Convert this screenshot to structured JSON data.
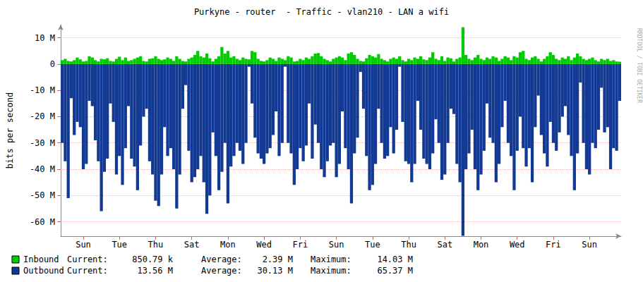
{
  "chart_data": {
    "type": "bar",
    "title": "Purkyne - router  - Traffic - vlan210 - LAN a wifi",
    "y_label": "bits per second",
    "credit": "RRDTOOL / TOBI OETIKER",
    "categories": [
      null,
      null,
      null,
      null,
      null,
      null,
      null,
      "Sun",
      null,
      null,
      null,
      null,
      null,
      null,
      null,
      null,
      null,
      null,
      null,
      "Tue",
      null,
      null,
      null,
      null,
      null,
      null,
      null,
      null,
      null,
      null,
      null,
      "Thu",
      null,
      null,
      null,
      null,
      null,
      null,
      null,
      null,
      null,
      null,
      null,
      "Sat",
      null,
      null,
      null,
      null,
      null,
      null,
      null,
      null,
      null,
      null,
      null,
      "Mon",
      null,
      null,
      null,
      null,
      null,
      null,
      null,
      null,
      null,
      null,
      null,
      "Wed",
      null,
      null,
      null,
      null,
      null,
      null,
      null,
      null,
      null,
      null,
      null,
      "Fri",
      null,
      null,
      null,
      null,
      null,
      null,
      null,
      null,
      null,
      null,
      null,
      "Sun",
      null,
      null,
      null,
      null,
      null,
      null,
      null,
      null,
      null,
      null,
      null,
      "Tue",
      null,
      null,
      null,
      null,
      null,
      null,
      null,
      null,
      null,
      null,
      null,
      "Thu",
      null,
      null,
      null,
      null,
      null,
      null,
      null,
      null,
      null,
      null,
      null,
      "Sat",
      null,
      null,
      null,
      null,
      null,
      null,
      null,
      null,
      null,
      null,
      null,
      "Mon",
      null,
      null,
      null,
      null,
      null,
      null,
      null,
      null,
      null,
      null,
      null,
      "Wed",
      null,
      null,
      null,
      null,
      null,
      null,
      null,
      null,
      null,
      null,
      null,
      "Fri",
      null,
      null,
      null,
      null,
      null,
      null,
      null,
      null,
      null,
      null,
      null,
      "Sun",
      null,
      null,
      null,
      null,
      null,
      null,
      null,
      null,
      null,
      null
    ],
    "series": [
      {
        "name": "Inbound",
        "color": "#00cc00",
        "stats": [
          {
            "label": "Current:",
            "value": "850.79 k"
          },
          {
            "label": "Average:",
            "value": "2.39 M"
          },
          {
            "label": "Maximum:",
            "value": "14.03 M"
          }
        ],
        "values": [
          1.5,
          2,
          1.2,
          1,
          1.5,
          2.5,
          1.8,
          1,
          1.2,
          3,
          2.5,
          1.5,
          1,
          2,
          1.8,
          2.2,
          1.2,
          1,
          2,
          2.8,
          1.5,
          2.5,
          1.2,
          1.5,
          2,
          2.5,
          3,
          1.2,
          1,
          2,
          2.2,
          3,
          2,
          1.5,
          1.8,
          2.5,
          2,
          1.2,
          3,
          2,
          1.2,
          1,
          2,
          2.5,
          3.5,
          5,
          3,
          2.5,
          4,
          2.2,
          1,
          2,
          3,
          6.5,
          4,
          5,
          2.5,
          3,
          2,
          1.5,
          2.5,
          2,
          1.8,
          5,
          4.5,
          2,
          1.2,
          1,
          1.5,
          2.5,
          2,
          1.2,
          2.5,
          2,
          1.5,
          3,
          2.5,
          1,
          1.2,
          2,
          1.5,
          2.5,
          2,
          3,
          4,
          4.2,
          3,
          2,
          1.5,
          1,
          2,
          2.5,
          3,
          2.5,
          1.5,
          4,
          4.5,
          3.5,
          2,
          1.2,
          1,
          2.2,
          3.5,
          3,
          2.5,
          3.8,
          2,
          1.5,
          1,
          2,
          2.5,
          2,
          3,
          1.5,
          1,
          2,
          1.5,
          2.5,
          2,
          3,
          1.8,
          1.5,
          2.5,
          4.5,
          2,
          1.5,
          3,
          1.2,
          2.5,
          2.2,
          1,
          2,
          2.5,
          14.03,
          3.5,
          2,
          1.5,
          2.5,
          3.5,
          2,
          1.5,
          2.5,
          2,
          3,
          2.5,
          1.2,
          2,
          3,
          2.5,
          1.5,
          3,
          2.5,
          4.5,
          5,
          2,
          1.5,
          2.5,
          3,
          2,
          1,
          2,
          3,
          4.5,
          3.5,
          2,
          1.5,
          2.5,
          2,
          3,
          1.5,
          2.5,
          4,
          3,
          2,
          1.5,
          2,
          2.5,
          1.5,
          1,
          2,
          1.5,
          2,
          1.2,
          1.5,
          1,
          0.9
        ]
      },
      {
        "name": "Outbound",
        "color": "#123a94",
        "stats": [
          {
            "label": "Current:",
            "value": "13.56 M"
          },
          {
            "label": "Average:",
            "value": "30.13 M"
          },
          {
            "label": "Maximum:",
            "value": "65.37 M"
          }
        ],
        "values": [
          -30,
          -37,
          -51,
          -13,
          -27,
          -22,
          -24,
          -40,
          -38,
          -14,
          -16,
          -29,
          -37,
          -56,
          -41,
          -36,
          -15,
          -22,
          -42,
          -35,
          -46,
          -32,
          -16,
          -36,
          -39,
          -48,
          -31,
          -20,
          -17,
          -37,
          -42,
          -52,
          -54,
          -42,
          -24,
          -35,
          -32,
          -40,
          -55,
          -42,
          -17,
          -8,
          -33,
          -45,
          -43,
          -40,
          -35,
          -45,
          -57,
          -50,
          -26,
          -35,
          -48,
          -41,
          -30,
          -53,
          -39,
          -35,
          -30,
          -33,
          -38,
          -30,
          -1,
          -15,
          -28,
          -34,
          -36,
          -38,
          -34,
          -32,
          -27,
          -18,
          -35,
          -30,
          -1,
          -30,
          -34,
          -46,
          -40,
          -32,
          -37,
          -31,
          -15,
          -36,
          -23,
          -30,
          -40,
          -43,
          -37,
          -31,
          -30,
          -43,
          -38,
          -18,
          -32,
          -40,
          -53,
          -34,
          -28,
          -3,
          -17,
          -35,
          -48,
          -46,
          -38,
          -17,
          -30,
          -36,
          -35,
          -24,
          -34,
          -25,
          -1,
          -22,
          -37,
          -38,
          -45,
          -38,
          -14,
          -25,
          -36,
          -38,
          -40,
          -34,
          -21,
          -30,
          -44,
          -42,
          -30,
          -17,
          -19,
          -38,
          -45,
          -65.37,
          -40,
          -34,
          -25,
          -40,
          -48,
          -42,
          -33,
          -15,
          -28,
          -30,
          -45,
          -38,
          -24,
          -14,
          -30,
          -35,
          -48,
          -33,
          -20,
          -32,
          -39,
          -32,
          -45,
          -24,
          -12,
          -27,
          -34,
          -39,
          -22,
          -30,
          -33,
          -26,
          -20,
          -16,
          -27,
          -35,
          -48,
          -34,
          -7,
          -30,
          -40,
          -42,
          -30,
          -32,
          -25,
          -9,
          -26,
          -24,
          -40,
          -32,
          -33,
          -14
        ]
      }
    ],
    "ylim": [
      -65.5,
      15
    ],
    "yticks": [
      {
        "value": 10,
        "label": "10 M"
      },
      0,
      {
        "value": -10,
        "label": "-10 M"
      },
      {
        "value": -20,
        "label": "-20 M"
      },
      {
        "value": -30,
        "label": "-30 M"
      },
      {
        "value": -40,
        "label": "-40 M"
      },
      {
        "value": -50,
        "label": "-50 M"
      },
      {
        "value": -60,
        "label": "-60 M"
      }
    ],
    "grid": true
  }
}
